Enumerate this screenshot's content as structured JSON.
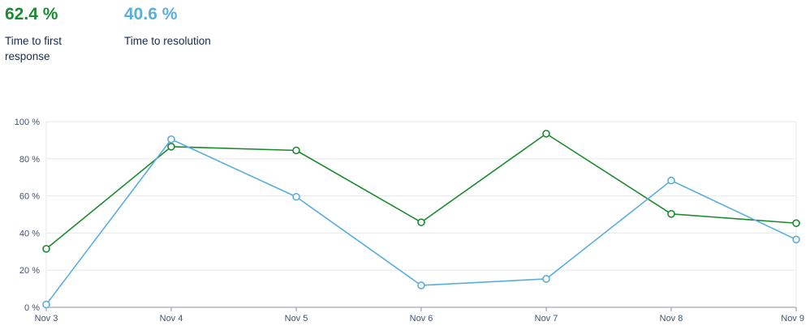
{
  "metrics": [
    {
      "value": "62.4 %",
      "label": "Time to first response",
      "color": "#1a8a2e"
    },
    {
      "value": "40.6 %",
      "label": "Time to resolution",
      "color": "#5aaedc"
    }
  ],
  "chart_data": {
    "type": "line",
    "x": [
      "Nov 3",
      "Nov 4",
      "Nov 5",
      "Nov 6",
      "Nov 7",
      "Nov 8",
      "Nov 9"
    ],
    "series": [
      {
        "name": "Time to first response",
        "color": "#1a8a2e",
        "values": [
          31.5,
          86.5,
          84.5,
          45.8,
          93.5,
          50.3,
          45.3
        ]
      },
      {
        "name": "Time to resolution",
        "color": "#5aaedc",
        "values": [
          1.5,
          90.5,
          59.5,
          11.8,
          15.3,
          68.3,
          36.5
        ]
      }
    ],
    "yticks": [
      "0 %",
      "20 %",
      "40 %",
      "60 %",
      "80 %",
      "100 %"
    ],
    "ylim": [
      0,
      100
    ],
    "grid": true
  }
}
